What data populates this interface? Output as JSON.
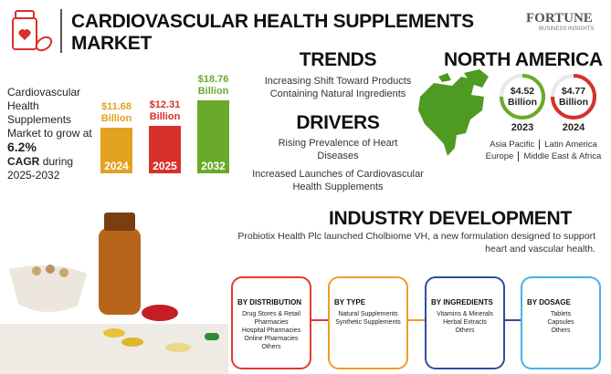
{
  "header": {
    "title": "CARDIOVASCULAR HEALTH SUPPLEMENTS MARKET",
    "logo": "FORTUNE",
    "logo_sub": "BUSINESS INSIGHTS"
  },
  "growth": {
    "text_1": "Cardiovascular Health Supplements Market to grow at",
    "cagr": "6.2%",
    "cagr_label": "CAGR",
    "text_2": "during 2025-2032"
  },
  "market_size": {
    "categories": [
      "2024",
      "2025",
      "2032"
    ],
    "values": [
      11.68,
      12.31,
      18.76
    ],
    "value_labels": [
      "$11.68 Billion",
      "$12.31 Billion",
      "$18.76 Billion"
    ],
    "colors": [
      "#e2a21f",
      "#d8302a",
      "#6aaa2a"
    ]
  },
  "trends": {
    "heading": "TRENDS",
    "items": [
      "Increasing Shift Toward Products Containing Natural Ingredients"
    ]
  },
  "drivers": {
    "heading": "DRIVERS",
    "items": [
      "Rising Prevalence of Heart Diseases",
      "Increased Launches of Cardiovascular Health Supplements"
    ]
  },
  "region": {
    "heading": "NORTH AMERICA",
    "values": [
      {
        "year": "2023",
        "label": "$4.52 Billion",
        "color": "#6aaa2a"
      },
      {
        "year": "2024",
        "label": "$4.77 Billion",
        "color": "#d8302a"
      }
    ],
    "others": [
      [
        "Asia Pacific",
        "Latin America"
      ],
      [
        "Europe",
        "Middle East & Africa"
      ]
    ]
  },
  "industry_development": {
    "heading": "INDUSTRY DEVELOPMENT",
    "text": "Probiotix Health Plc launched Cholbiome VH, a new formulation designed to support heart and vascular health."
  },
  "segments": [
    {
      "title": "BY DISTRIBUTION",
      "color": "#e03b2e",
      "items": [
        "Drug Stores & Retail Pharmacies",
        "Hospital Pharmacies",
        "Online Pharmacies",
        "Others"
      ]
    },
    {
      "title": "BY TYPE",
      "color": "#f29a2e",
      "items": [
        "Natural Supplements",
        "Synthetic Supplements"
      ]
    },
    {
      "title": "BY INGREDIENTS",
      "color": "#2c4f9c",
      "items": [
        "Vitamins & Minerals",
        "Herbal Extracts",
        "Others"
      ]
    },
    {
      "title": "BY DOSAGE",
      "color": "#4ab2df",
      "items": [
        "Tablets",
        "Capsules",
        "Others"
      ]
    }
  ]
}
